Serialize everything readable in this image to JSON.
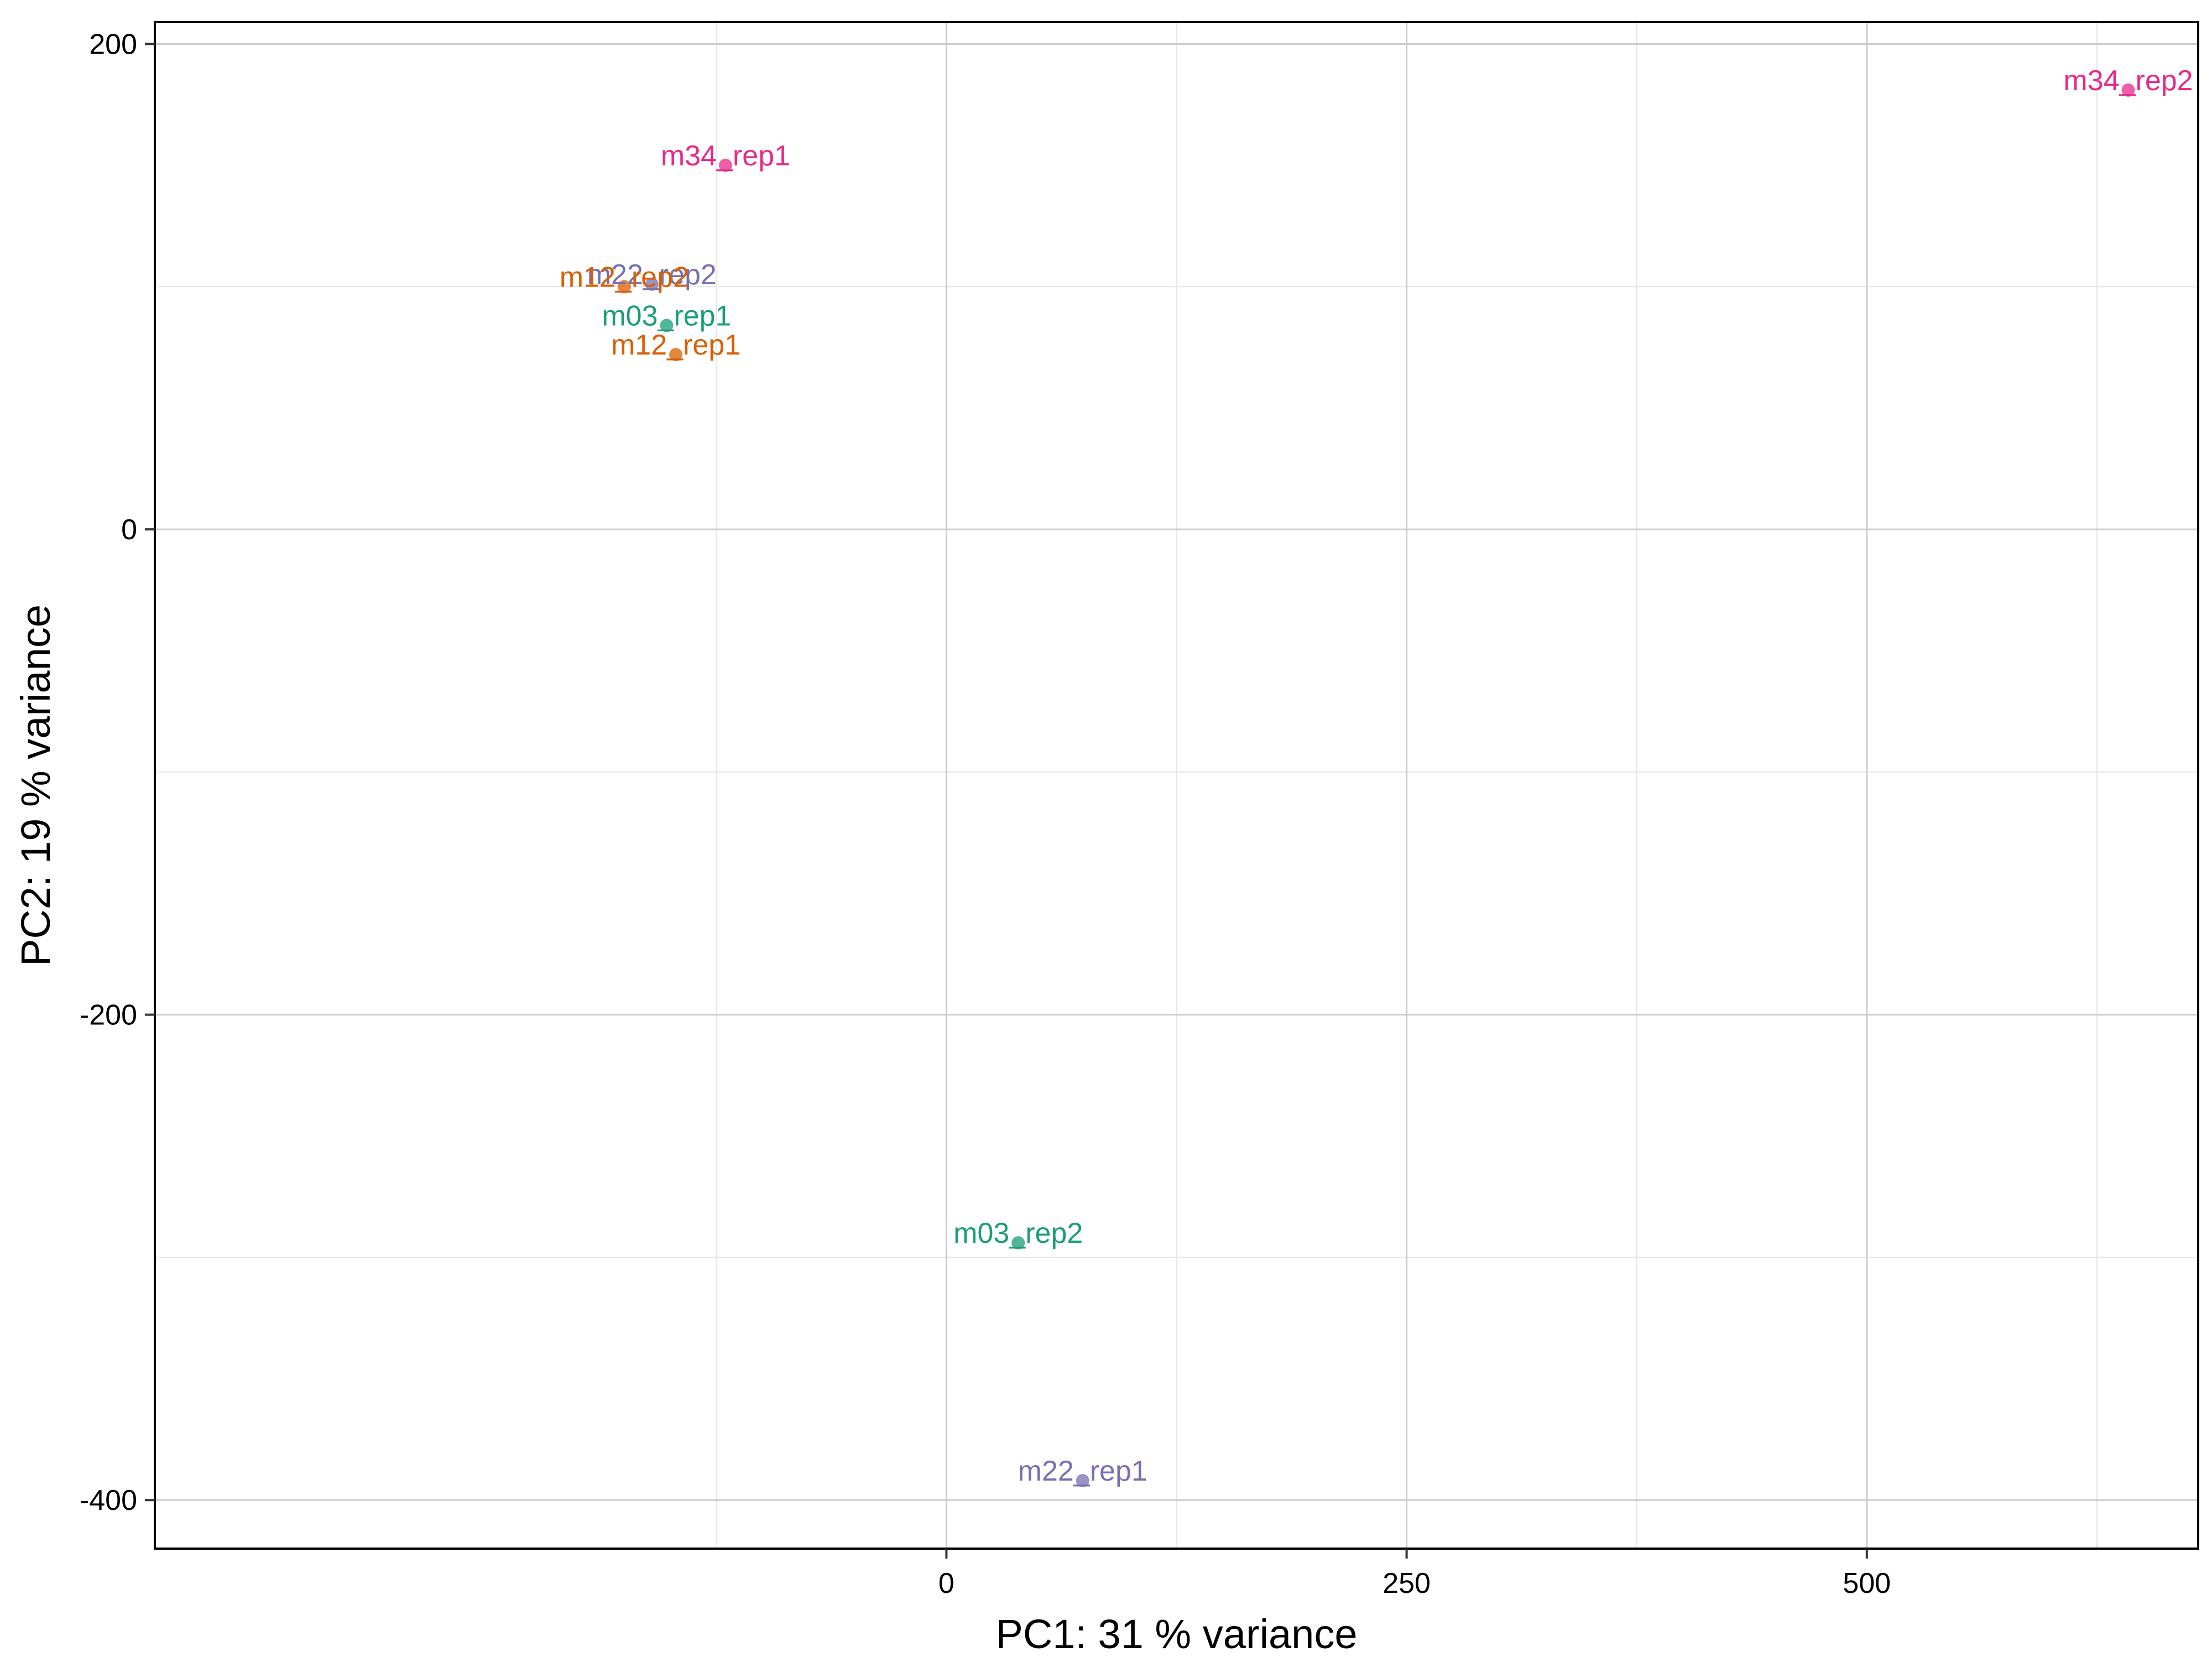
{
  "chart_data": {
    "type": "scatter",
    "title": "",
    "xlabel": "PC1:  31 % variance",
    "ylabel": "PC2:  19 % variance",
    "xlim": [
      -430,
      680
    ],
    "ylim": [
      -420,
      209
    ],
    "x_ticks": [
      0,
      250,
      500
    ],
    "y_ticks": [
      200,
      0,
      -200,
      -400
    ],
    "x_tick_labels": [
      "0",
      "250",
      "500"
    ],
    "y_tick_labels": [
      "200",
      "0",
      "-200",
      "-400"
    ],
    "grid": true,
    "legend": "none",
    "points": [
      {
        "label": "m34_rep1",
        "x": -120,
        "y": 150,
        "color": "#E7298A"
      },
      {
        "label": "m34_rep2",
        "x": 642,
        "y": 181,
        "color": "#E7298A"
      },
      {
        "label": "m22_rep2",
        "x": -160,
        "y": 101,
        "color": "#7570B3"
      },
      {
        "label": "m12_rep2",
        "x": -175,
        "y": 100,
        "color": "#D95F02"
      },
      {
        "label": "m03_rep1",
        "x": -152,
        "y": 84,
        "color": "#1B9E77"
      },
      {
        "label": "m12_rep1",
        "x": -147,
        "y": 72,
        "color": "#D95F02"
      },
      {
        "label": "m03_rep2",
        "x": 39,
        "y": -294,
        "color": "#1B9E77"
      },
      {
        "label": "m22_rep1",
        "x": 74,
        "y": -392,
        "color": "#7570B3"
      }
    ]
  }
}
